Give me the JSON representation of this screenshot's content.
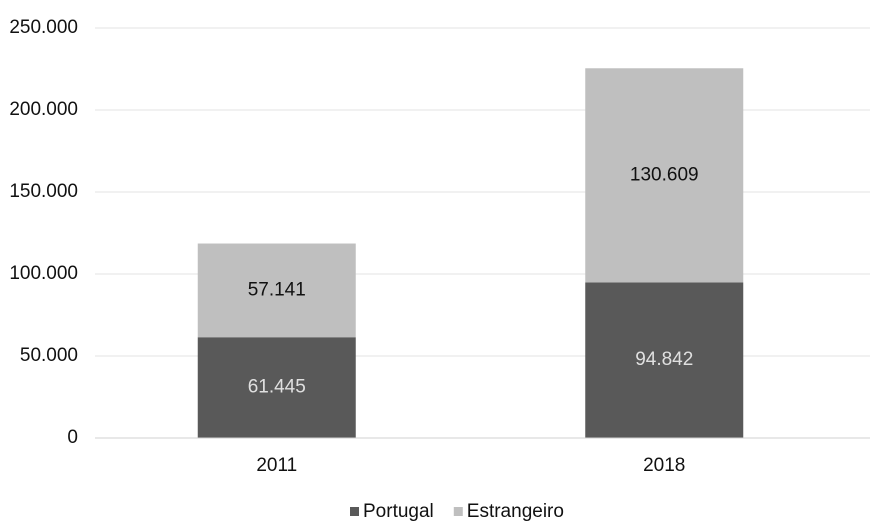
{
  "chart_data": {
    "type": "stacked_bar",
    "categories": [
      "2011",
      "2018"
    ],
    "series": [
      {
        "name": "Portugal",
        "color": "#595959",
        "values": [
          61445,
          94842
        ],
        "value_labels": [
          "61.445",
          "94.842"
        ]
      },
      {
        "name": "Estrangeiro",
        "color": "#bfbfbf",
        "values": [
          57141,
          130609
        ],
        "value_labels": [
          "57.141",
          "130.609"
        ]
      }
    ],
    "ylim": [
      0,
      250000
    ],
    "yticks": [
      0,
      {
        "value": 50000,
        "label": "50.000"
      },
      {
        "value": 100000,
        "label": "100.000"
      },
      {
        "value": 150000,
        "label": "150.000"
      },
      {
        "value": 200000,
        "label": "200.000"
      },
      {
        "value": 250000,
        "label": "250.000"
      }
    ],
    "grid": true,
    "legend": "bottom"
  }
}
